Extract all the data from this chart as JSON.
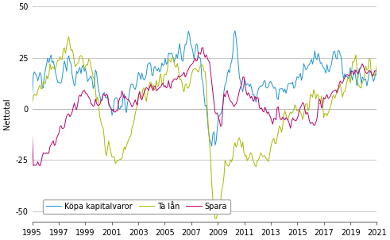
{
  "title": "",
  "ylabel": "Nettotal",
  "xlim": [
    1995,
    2021
  ],
  "ylim": [
    -55,
    50
  ],
  "yticks": [
    -50,
    -25,
    0,
    25,
    50
  ],
  "xticks": [
    1995,
    1997,
    1999,
    2001,
    2003,
    2005,
    2007,
    2009,
    2011,
    2013,
    2015,
    2017,
    2019,
    2021
  ],
  "line_colors": {
    "kopa": "#1f94d2",
    "lan": "#a8b800",
    "spara": "#b8006a"
  },
  "legend_labels": [
    "Köpa kapitalvaror",
    "Ta lån",
    "Spara"
  ],
  "background_color": "#ffffff",
  "grid_color": "#b0b0b0",
  "font_size": 7,
  "legend_fontsize": 7
}
